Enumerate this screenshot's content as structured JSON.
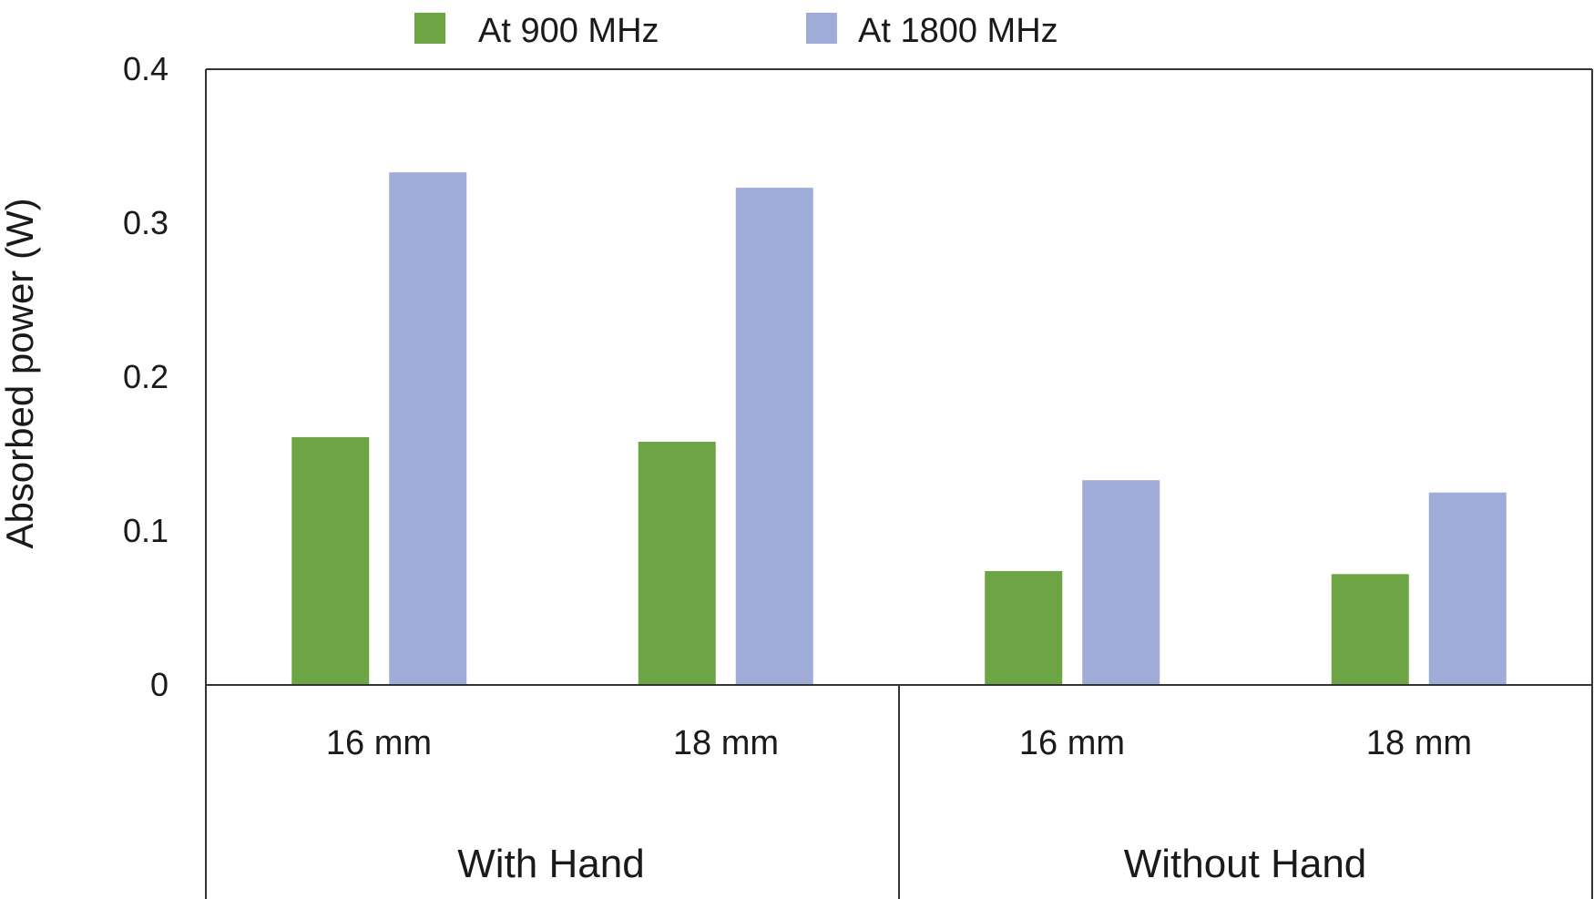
{
  "chart_data": {
    "type": "bar",
    "ylabel": "Absorbed power (W)",
    "xlabel": "",
    "ylim": [
      0,
      0.4
    ],
    "yticks": [
      0,
      0.1,
      0.2,
      0.3,
      0.4
    ],
    "ytick_labels": [
      "0",
      "0.1",
      "0.2",
      "0.3",
      "0.4"
    ],
    "legend_position": "top",
    "groups": [
      "With Hand",
      "Without Hand"
    ],
    "categories": [
      "16 mm",
      "18 mm",
      "16 mm",
      "18 mm"
    ],
    "category_group": [
      0,
      0,
      1,
      1
    ],
    "series": [
      {
        "name": "At 900 MHz",
        "color": "#6da544",
        "values": [
          0.161,
          0.158,
          0.074,
          0.072
        ]
      },
      {
        "name": "At 1800 MHz",
        "color": "#9eacd7",
        "values": [
          0.333,
          0.323,
          0.133,
          0.125
        ]
      }
    ]
  }
}
